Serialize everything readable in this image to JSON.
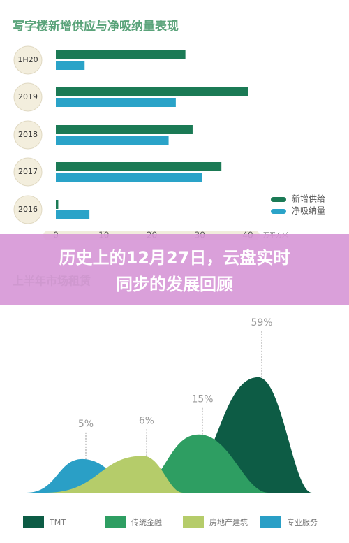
{
  "banner": {
    "lines": [
      "历史上的12月27日，云盘实时",
      "同步的发展回顾"
    ]
  },
  "chart_data": [
    {
      "type": "hbar",
      "title": "写字楼新增供应与净吸纳量表现",
      "xlabel": "万平方米",
      "categories": [
        "1H20",
        "2019",
        "2018",
        "2017",
        "2016"
      ],
      "series": [
        {
          "name": "新增供给",
          "color": "#1b7a55",
          "values": [
            27,
            40,
            28.5,
            34.5,
            0.5
          ]
        },
        {
          "name": "净吸纳量",
          "color": "#2aa3c8",
          "values": [
            6,
            25,
            23.5,
            30.5,
            7
          ]
        }
      ],
      "xlim": [
        0,
        40
      ],
      "xticks": [
        0,
        10,
        20,
        30,
        40
      ]
    },
    {
      "type": "mountain",
      "title": "上半年市场租赁",
      "categories": [
        "TMT",
        "传统金融",
        "房地产建筑",
        "专业服务"
      ],
      "values": [
        59,
        15,
        6,
        5
      ],
      "value_labels": [
        "59%",
        "15%",
        "6%",
        "5%"
      ],
      "colors": [
        "#0d5c45",
        "#2e9e62",
        "#b5cc6a",
        "#2a9fc6"
      ]
    }
  ]
}
